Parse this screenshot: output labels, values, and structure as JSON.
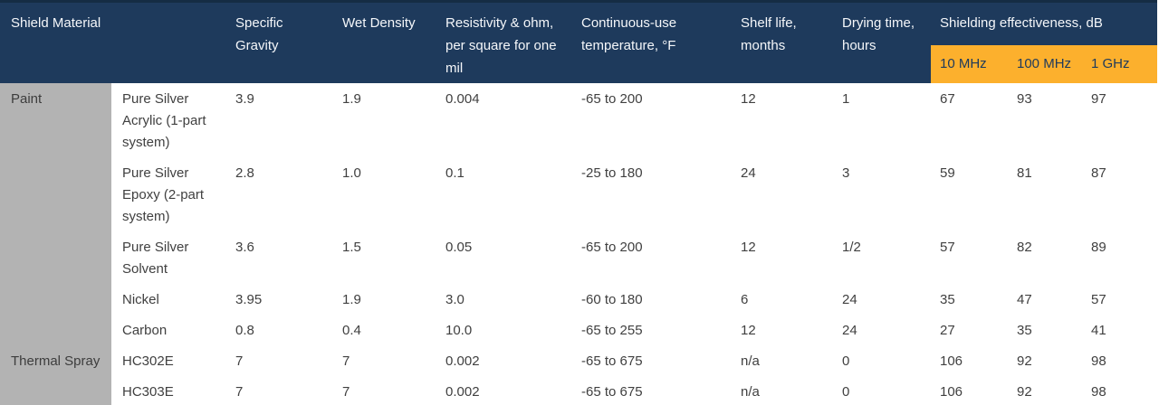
{
  "chart_data": {
    "type": "table",
    "header": {
      "shield_material": "Shield Material",
      "columns": [
        "Specific Gravity",
        "Wet Density",
        "Resistivity & ohm, per square for one mil",
        "Continuous-use temperature, °F",
        "Shelf life, months",
        "Drying time, hours"
      ],
      "shielding_group": "Shielding effectiveness, dB",
      "sub_columns": [
        "10 MHz",
        "100 MHz",
        "1 GHz"
      ]
    },
    "groups": [
      {
        "category": "Paint",
        "rows": [
          {
            "name": "Pure Silver Acrylic (1-part system)",
            "values": [
              "3.9",
              "1.9",
              "0.004",
              "-65 to 200",
              "12",
              "1",
              "67",
              "93",
              "97"
            ]
          },
          {
            "name": "Pure Silver Epoxy (2-part system)",
            "values": [
              "2.8",
              "1.0",
              "0.1",
              "-25 to 180",
              "24",
              "3",
              "59",
              "81",
              "87"
            ]
          },
          {
            "name": "Pure Silver Solvent",
            "values": [
              "3.6",
              "1.5",
              "0.05",
              "-65 to 200",
              "12",
              "1/2",
              "57",
              "82",
              "89"
            ]
          },
          {
            "name": "Nickel",
            "values": [
              "3.95",
              "1.9",
              "3.0",
              "-60 to 180",
              "6",
              "24",
              "35",
              "47",
              "57"
            ]
          },
          {
            "name": "Carbon",
            "values": [
              "0.8",
              "0.4",
              "10.0",
              "-65 to 255",
              "12",
              "24",
              "27",
              "35",
              "41"
            ]
          }
        ]
      },
      {
        "category": "Thermal Spray",
        "rows": [
          {
            "name": "HC302E",
            "values": [
              "7",
              "7",
              "0.002",
              "-65 to 675",
              "n/a",
              "0",
              "106",
              "92",
              "98"
            ]
          },
          {
            "name": "HC303E",
            "values": [
              "7",
              "7",
              "0.002",
              "-65 to 675",
              "n/a",
              "0",
              "106",
              "92",
              "98"
            ]
          }
        ]
      }
    ]
  },
  "colors": {
    "header_background": "#1e3a5c",
    "header_top_border": "#152c44",
    "subheader_background": "#fcb02d",
    "subheader_text": "#1e3a5c",
    "category_background": "#b3b3b3",
    "body_text": "#404040",
    "header_text": "#f5f7fa"
  }
}
